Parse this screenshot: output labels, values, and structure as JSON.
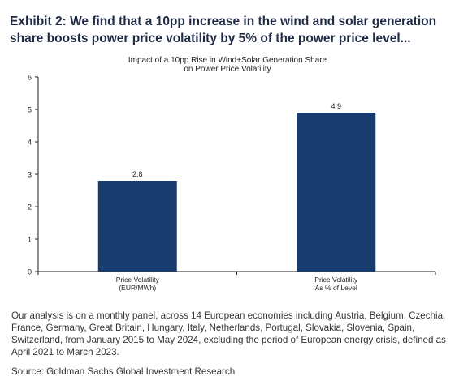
{
  "exhibit_title": "Exhibit 2: We find that a 10pp increase in the wind and solar generation share boosts power price volatility by 5% of the power price level...",
  "chart_data": {
    "type": "bar",
    "title_lines": [
      "Impact of a 10pp Rise in Wind+Solar Generation Share",
      "on Power Price Volatility"
    ],
    "categories": [
      [
        "Price Volatility",
        "(EUR/MWh)"
      ],
      [
        "Price Volatility",
        "As % of Level"
      ]
    ],
    "values": [
      2.8,
      4.9
    ],
    "value_labels": [
      "2.8",
      "4.9"
    ],
    "ylim": [
      0,
      6
    ],
    "yticks": [
      "0",
      "1",
      "2",
      "3",
      "4",
      "5",
      "6"
    ],
    "bar_color": "#173b6c",
    "grid": false
  },
  "footnote": "Our analysis is on a monthly panel, across 14 European economies including Austria, Belgium, Czechia, France, Germany, Great Britain, Hungary, Italy, Netherlands, Portugal, Slovakia, Slovenia, Spain, Switzerland, from January 2015 to May 2024, excluding the period of European energy crisis, defined as April 2021 to March 2023.",
  "source": "Source: Goldman Sachs Global Investment Research"
}
